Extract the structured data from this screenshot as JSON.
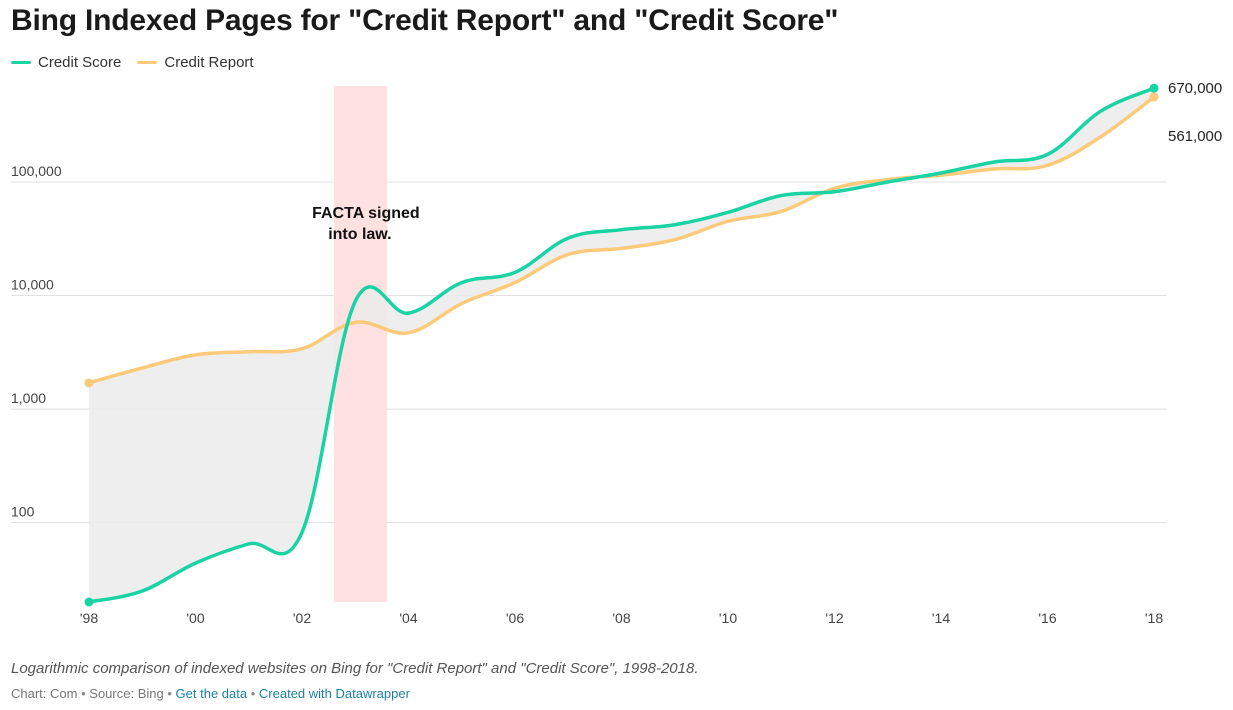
{
  "header": {
    "title": "Bing Indexed Pages for \"Credit Report\" and \"Credit Score\""
  },
  "footer": {
    "description": "Logarithmic comparison of indexed websites on Bing for \"Credit Report\" and \"Credit Score\", 1998-2018.",
    "chart_by": "Chart: Com",
    "source": "Source: Bing",
    "get_data": "Get the data",
    "created_with": "Created with Datawrapper",
    "separator": "•"
  },
  "chart_data": {
    "type": "line",
    "title": "Bing Indexed Pages for \"Credit Report\" and \"Credit Score\"",
    "xlabel": "",
    "ylabel": "",
    "yscale": "log",
    "xlim": [
      1998,
      2018
    ],
    "ylim": [
      20,
      700000
    ],
    "grid": true,
    "legend_position": "top-left",
    "x_ticks": [
      {
        "value": 1998,
        "label": "'98"
      },
      {
        "value": 2000,
        "label": "'00"
      },
      {
        "value": 2002,
        "label": "'02"
      },
      {
        "value": 2004,
        "label": "'04"
      },
      {
        "value": 2006,
        "label": "'06"
      },
      {
        "value": 2008,
        "label": "'08"
      },
      {
        "value": 2010,
        "label": "'10"
      },
      {
        "value": 2012,
        "label": "'12"
      },
      {
        "value": 2014,
        "label": "'14"
      },
      {
        "value": 2016,
        "label": "'16"
      },
      {
        "value": 2018,
        "label": "'18"
      }
    ],
    "y_ticks": [
      {
        "value": 100,
        "label": "100"
      },
      {
        "value": 1000,
        "label": "1,000"
      },
      {
        "value": 10000,
        "label": "10,000"
      },
      {
        "value": 100000,
        "label": "100,000"
      }
    ],
    "x": [
      1998,
      1999,
      2000,
      2001,
      2002,
      2003,
      2004,
      2005,
      2006,
      2007,
      2008,
      2009,
      2010,
      2011,
      2012,
      2013,
      2014,
      2015,
      2016,
      2017,
      2018
    ],
    "series": [
      {
        "name": "Credit Score",
        "color": "#19d3a2",
        "values": [
          20,
          25,
          44,
          65,
          82,
          8900,
          7000,
          13000,
          16000,
          32000,
          38000,
          42000,
          54000,
          76000,
          82000,
          100000,
          120000,
          150000,
          175000,
          420000,
          670000
        ],
        "end_label": "670,000"
      },
      {
        "name": "Credit Report",
        "color": "#fcca79",
        "values": [
          1700,
          2300,
          3000,
          3200,
          3400,
          5800,
          4700,
          8500,
          13000,
          23000,
          26000,
          31000,
          45000,
          55000,
          88000,
          105000,
          115000,
          130000,
          140000,
          250000,
          561000
        ],
        "end_label": "561,000"
      }
    ],
    "fill_between": {
      "color": "#ebebeb"
    },
    "highlight_range": {
      "x": [
        2002.6,
        2003.6
      ],
      "color": "#ffe1e1"
    },
    "annotations": [
      {
        "text": [
          "FACTA signed",
          "into law."
        ],
        "x": 2003.2,
        "y": 18000
      }
    ]
  }
}
